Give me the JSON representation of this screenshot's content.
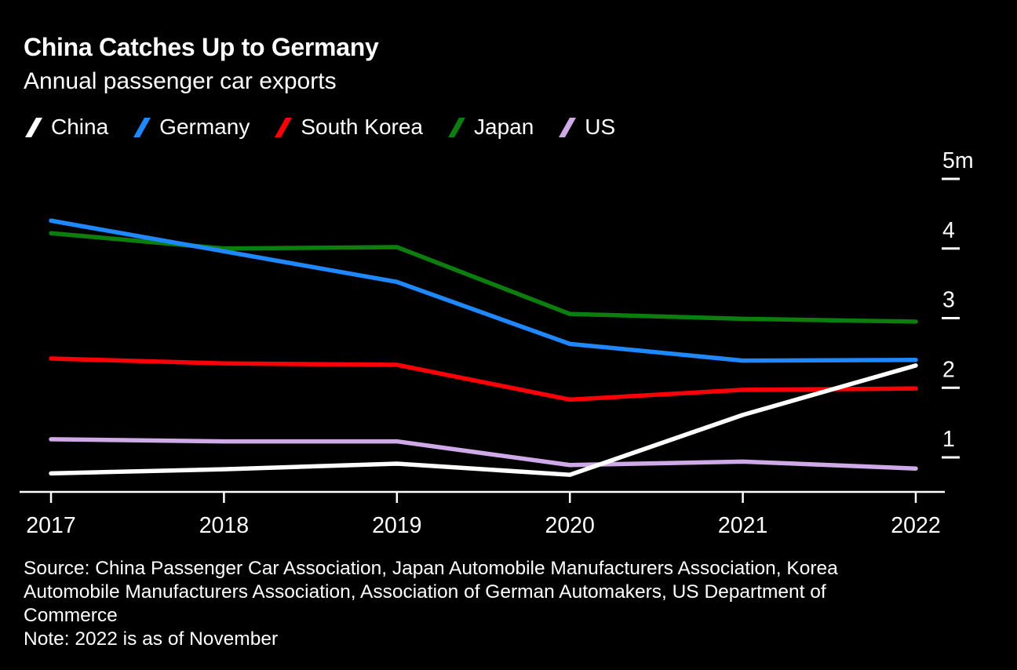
{
  "chart_data": {
    "type": "line",
    "title": "China Catches Up to Germany",
    "subtitle": "Annual passenger car exports",
    "xlabel": "",
    "ylabel": "",
    "x": [
      "2017",
      "2018",
      "2019",
      "2020",
      "2021",
      "2022"
    ],
    "ylim": [
      0.5,
      5.4
    ],
    "grid": false,
    "legend_position": "top",
    "legend_order": [
      "China",
      "Germany",
      "South Korea",
      "Japan",
      "US"
    ],
    "y_ticks": [
      {
        "value": 1,
        "label": "1"
      },
      {
        "value": 2,
        "label": "2"
      },
      {
        "value": 3,
        "label": "3"
      },
      {
        "value": 4,
        "label": "4"
      },
      {
        "value": 5,
        "label": "5m"
      }
    ],
    "series": [
      {
        "name": "Japan",
        "color": "#0c7e0d",
        "values": [
          4.22,
          4.0,
          4.02,
          3.06,
          2.99,
          2.95
        ]
      },
      {
        "name": "Germany",
        "color": "#1e88fc",
        "values": [
          4.4,
          3.96,
          3.52,
          2.63,
          2.39,
          2.4
        ]
      },
      {
        "name": "South Korea",
        "color": "#fb0007",
        "values": [
          2.42,
          2.35,
          2.33,
          1.83,
          1.97,
          1.99
        ]
      },
      {
        "name": "US",
        "color": "#cfa9e8",
        "values": [
          1.26,
          1.23,
          1.23,
          0.89,
          0.94,
          0.84
        ]
      },
      {
        "name": "China",
        "color": "#ffffff",
        "values": [
          0.77,
          0.83,
          0.91,
          0.75,
          1.61,
          2.32
        ]
      }
    ]
  },
  "footer": {
    "source_lines": [
      "Source: China Passenger Car Association, Japan Automobile Manufacturers Association, Korea",
      "Automobile Manufacturers Association, Association of German Automakers, US Department of",
      "Commerce"
    ],
    "note": "Note: 2022 is as of November"
  },
  "colors": {
    "background": "#000000",
    "text": "#ffffff",
    "axis": "#ffffff"
  }
}
